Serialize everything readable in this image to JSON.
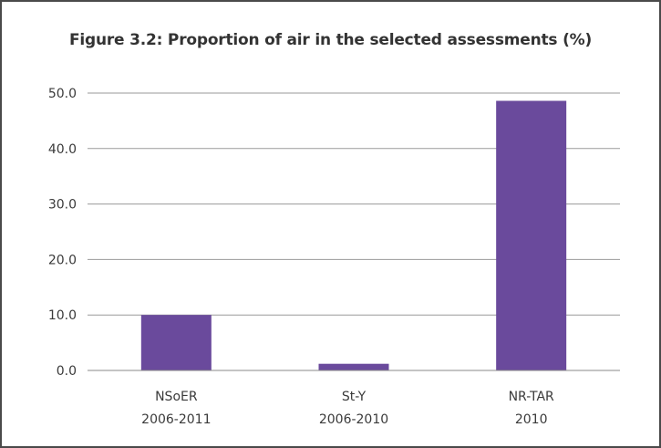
{
  "chart_data": {
    "type": "bar",
    "title": "Figure 3.2: Proportion of air in the selected assessments (%)",
    "categories": [
      [
        "NSoER",
        "2006-2011"
      ],
      [
        "St-Y",
        "2006-2010"
      ],
      [
        "NR-TAR",
        "2010"
      ]
    ],
    "values": [
      10.0,
      1.2,
      48.6
    ],
    "xlabel": "",
    "ylabel": "",
    "ylim": [
      0,
      50
    ],
    "yticks": [
      "0.0",
      "10.0",
      "20.0",
      "30.0",
      "40.0",
      "50.0"
    ],
    "grid": true,
    "legend": "none",
    "bar_color": "#6a4a9c"
  }
}
